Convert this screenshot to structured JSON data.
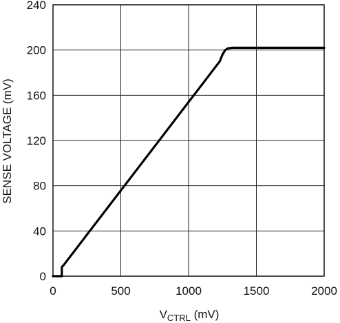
{
  "chart_data": {
    "type": "line",
    "title": "",
    "xlabel": {
      "main": "V",
      "sub": "CTRL",
      "unit": " (mV)"
    },
    "ylabel": "SENSE VOLTAGE (mV)",
    "xlim": [
      0,
      2000
    ],
    "ylim": [
      0,
      240
    ],
    "xticks": [
      0,
      500,
      1000,
      1500,
      2000
    ],
    "yticks": [
      0,
      40,
      80,
      120,
      160,
      200,
      240
    ],
    "grid": true,
    "series": [
      {
        "x": [
          0,
          65,
          65,
          80,
          1230,
          1250,
          1270,
          1290,
          1320,
          2000
        ],
        "y": [
          0,
          0,
          8,
          10,
          190,
          196,
          200,
          201.5,
          202,
          202
        ]
      }
    ]
  }
}
